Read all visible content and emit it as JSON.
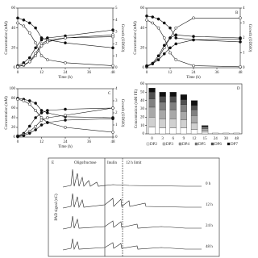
{
  "chart_data": [
    {
      "type": "line",
      "xlabel": "Time (h)",
      "ylabel": "Concentration (mM)",
      "y2label": "Growth (OD600)",
      "x": [
        0,
        3,
        6,
        9,
        12,
        15,
        24,
        48
      ],
      "xlim": [
        0,
        48
      ],
      "xticks": [
        0,
        12,
        24,
        36,
        48
      ],
      "ylim": [
        0,
        60
      ],
      "yticks": [
        0,
        20,
        40,
        60
      ],
      "y2lim": [
        0,
        5
      ],
      "y2ticks": [
        0,
        1,
        2,
        3,
        4,
        5
      ],
      "series": [
        {
          "color": "#111",
          "open": false,
          "values": [
            50,
            48,
            45,
            40,
            30,
            28,
            25,
            20
          ]
        },
        {
          "color": "#111",
          "open": true,
          "axis": "y2",
          "values": [
            0.1,
            0.2,
            0.5,
            1.2,
            2.0,
            2.3,
            2.5,
            2.6
          ]
        },
        {
          "color": "#111",
          "open": false,
          "values": [
            2,
            5,
            10,
            20,
            28,
            30,
            32,
            38
          ]
        },
        {
          "color": "#111",
          "open": true,
          "values": [
            1,
            3,
            6,
            12,
            22,
            26,
            30,
            33
          ]
        },
        {
          "color": "#111",
          "open": true,
          "values": [
            45,
            42,
            35,
            25,
            12,
            8,
            5,
            2
          ]
        }
      ]
    },
    {
      "type": "line",
      "label": "B",
      "xlabel": "Time (h)",
      "ylabel": "Concentration (mM)",
      "y2label": "Growth (OD600)",
      "x": [
        0,
        3,
        6,
        9,
        12,
        15,
        24,
        48
      ],
      "xlim": [
        0,
        48
      ],
      "xticks": [
        0,
        12,
        24,
        36,
        48
      ],
      "ylim": [
        0,
        60
      ],
      "yticks": [
        0,
        20,
        40,
        60
      ],
      "y2lim": [
        0,
        4
      ],
      "y2ticks": [
        0,
        1,
        2,
        3,
        4
      ],
      "series": [
        {
          "color": "#111",
          "open": false,
          "values": [
            52,
            51,
            49,
            45,
            40,
            30,
            28,
            26
          ]
        },
        {
          "color": "#111",
          "open": true,
          "values": [
            1,
            4,
            10,
            20,
            30,
            40,
            50,
            50
          ]
        },
        {
          "color": "#111",
          "open": false,
          "axis": "y2",
          "values": [
            0.1,
            0.3,
            0.8,
            1.5,
            2.0,
            2.2,
            2.1,
            2.0
          ]
        },
        {
          "color": "#111",
          "open": true,
          "values": [
            48,
            45,
            40,
            30,
            15,
            8,
            2,
            1
          ]
        },
        {
          "color": "#111",
          "open": false,
          "values": [
            2,
            4,
            8,
            14,
            20,
            24,
            28,
            29
          ]
        }
      ]
    },
    {
      "type": "line",
      "label": "C",
      "xlabel": "Time (h)",
      "ylabel": "Concentration (mM)",
      "y2label": "Growth (OD600)",
      "x": [
        0,
        3,
        6,
        9,
        12,
        15,
        24,
        48
      ],
      "xlim": [
        0,
        48
      ],
      "xticks": [
        0,
        12,
        24,
        36,
        48
      ],
      "ylim": [
        0,
        100
      ],
      "yticks": [
        0,
        20,
        40,
        60,
        80,
        100
      ],
      "y2lim": [
        0,
        4
      ],
      "y2ticks": [
        0,
        1,
        2,
        3,
        4
      ],
      "series": [
        {
          "color": "#111",
          "open": false,
          "values": [
            80,
            78,
            75,
            70,
            55,
            50,
            42,
            40
          ]
        },
        {
          "color": "#111",
          "open": true,
          "values": [
            78,
            75,
            68,
            55,
            40,
            30,
            20,
            10
          ]
        },
        {
          "color": "#111",
          "open": false,
          "axis": "y2",
          "values": [
            0.1,
            0.3,
            0.9,
            1.6,
            2.0,
            2.2,
            2.3,
            2.4
          ]
        },
        {
          "color": "#111",
          "open": true,
          "values": [
            2,
            5,
            12,
            22,
            35,
            40,
            45,
            60
          ]
        },
        {
          "color": "#111",
          "open": false,
          "values": [
            1,
            3,
            8,
            15,
            25,
            30,
            35,
            38
          ]
        }
      ]
    },
    {
      "type": "bar",
      "label": "D",
      "ylabel": "Concentration (mM FE)",
      "categories": [
        "0",
        "3",
        "6",
        "9",
        "12",
        "15",
        "24",
        "30",
        "48"
      ],
      "ylim": [
        0,
        60
      ],
      "yticks": [
        0,
        10,
        20,
        30,
        40,
        50,
        60
      ],
      "series": [
        {
          "name": "DP2",
          "color": "#ffffff",
          "values": [
            8,
            7,
            7,
            7,
            5,
            2,
            1,
            1,
            1
          ]
        },
        {
          "name": "DP3",
          "color": "#d0d0d0",
          "values": [
            12,
            11,
            11,
            10,
            8,
            2,
            0,
            0,
            0
          ]
        },
        {
          "name": "DP4",
          "color": "#a8a8a8",
          "values": [
            12,
            11,
            11,
            10,
            9,
            2,
            0,
            0,
            0
          ]
        },
        {
          "name": "DP5",
          "color": "#808080",
          "values": [
            10,
            9,
            9,
            8,
            7,
            2,
            0,
            0,
            0
          ]
        },
        {
          "name": "DP6",
          "color": "#505050",
          "values": [
            8,
            7,
            7,
            6,
            5,
            1,
            0,
            0,
            0
          ]
        },
        {
          "name": "DP7",
          "color": "#111111",
          "values": [
            5,
            5,
            5,
            6,
            6,
            1,
            0,
            0,
            0
          ]
        }
      ]
    }
  ],
  "panel_e": {
    "label": "E",
    "ylabel": "PAD signal (nC)",
    "annotations": [
      "Oligofructose",
      "Inulin",
      "12 h limit"
    ],
    "traces": [
      "0 h",
      "12 h",
      "24 h",
      "48 h"
    ]
  }
}
